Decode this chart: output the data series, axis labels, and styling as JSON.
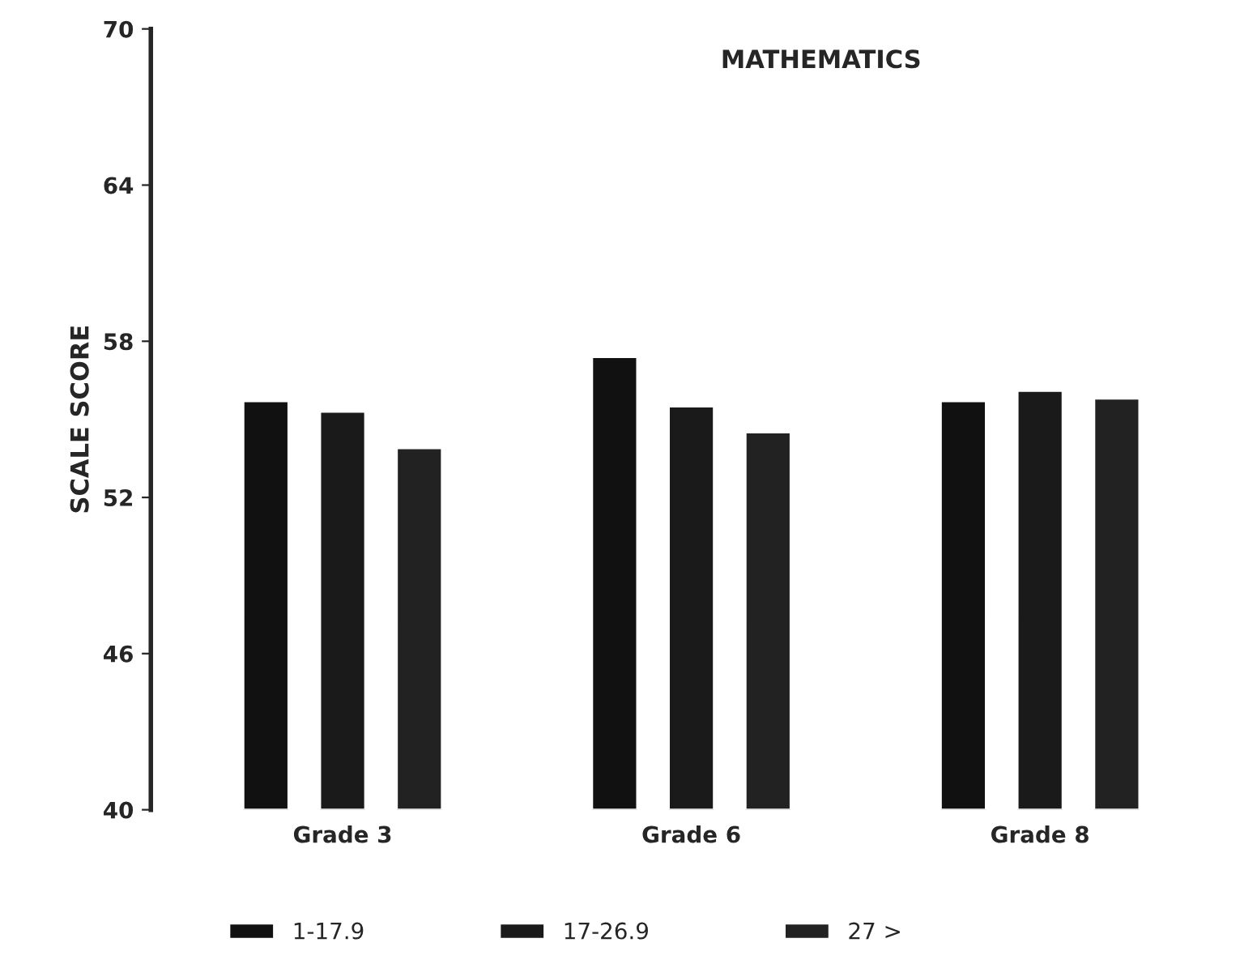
{
  "chart_data": {
    "type": "bar",
    "title": "MATHEMATICS",
    "ylabel": "SCALE SCORE",
    "categories": [
      "Grade 3",
      "Grade 6",
      "Grade 8"
    ],
    "series": [
      {
        "name": "1-17.9",
        "color": "#111111",
        "values": [
          55.7,
          57.4,
          55.7
        ]
      },
      {
        "name": "17-26.9",
        "color": "#1a1a1a",
        "values": [
          55.3,
          55.5,
          56.1
        ]
      },
      {
        "name": "27 >",
        "color": "#222222",
        "values": [
          53.9,
          54.5,
          55.8
        ]
      }
    ],
    "ylim": [
      40,
      70
    ],
    "yticks": [
      40,
      46,
      52,
      58,
      64,
      70
    ],
    "grid": false,
    "legend": "bottom"
  }
}
